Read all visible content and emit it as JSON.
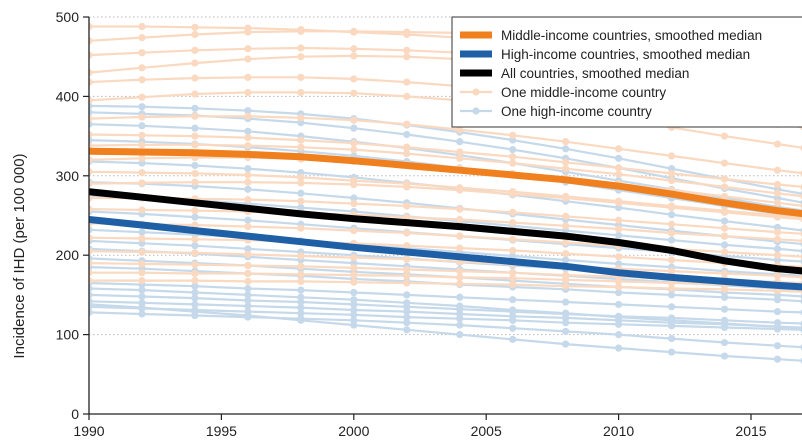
{
  "chart_data": {
    "type": "line",
    "xlabel": "",
    "ylabel": "Incidence of IHD (per 100 000)",
    "xlim": [
      1990,
      2017
    ],
    "ylim": [
      0,
      500
    ],
    "x_ticks": [
      1990,
      1995,
      2000,
      2005,
      2010,
      2015
    ],
    "y_ticks": [
      0,
      100,
      200,
      300,
      400,
      500
    ],
    "grid": "horizontal dotted",
    "legend_position": "top-right",
    "colors": {
      "middle_median": "#f07f1e",
      "high_median": "#1f5fa6",
      "all_median": "#000000",
      "middle_country": "#fad9c0",
      "high_country": "#c5d9ea"
    },
    "legend": [
      {
        "key": "middle_median",
        "label": "Middle-income countries, smoothed median"
      },
      {
        "key": "high_median",
        "label": "High-income countries, smoothed median"
      },
      {
        "key": "all_median",
        "label": "All countries, smoothed median"
      },
      {
        "key": "middle_country",
        "label": "One middle-income country"
      },
      {
        "key": "high_country",
        "label": "One high-income country"
      }
    ],
    "x": [
      1990,
      1992,
      1994,
      1996,
      1998,
      2000,
      2002,
      2004,
      2006,
      2008,
      2010,
      2012,
      2014,
      2016,
      2017
    ],
    "median_series": [
      {
        "key": "middle_median",
        "name": "Middle-income countries, smoothed median",
        "values": [
          331,
          330,
          329,
          327,
          324,
          319,
          313,
          307,
          301,
          295,
          287,
          277,
          266,
          256,
          252
        ]
      },
      {
        "key": "high_median",
        "name": "High-income countries, smoothed median",
        "values": [
          245,
          238,
          231,
          224,
          217,
          210,
          204,
          198,
          192,
          186,
          178,
          172,
          167,
          162,
          160
        ]
      },
      {
        "key": "all_median",
        "name": "All countries, smoothed median",
        "values": [
          280,
          273,
          266,
          259,
          252,
          246,
          241,
          236,
          230,
          224,
          216,
          206,
          193,
          183,
          180
        ]
      }
    ],
    "country_series": {
      "middle": [
        [
          488,
          488,
          487,
          486,
          484,
          481,
          478,
          474,
          470,
          466,
          460,
          453,
          446,
          438,
          434
        ],
        [
          470,
          474,
          478,
          481,
          482,
          482,
          481,
          480,
          478,
          474,
          469,
          462,
          455,
          447,
          443
        ],
        [
          452,
          455,
          458,
          460,
          461,
          460,
          458,
          455,
          451,
          446,
          440,
          433,
          425,
          418,
          414
        ],
        [
          430,
          436,
          442,
          447,
          450,
          451,
          450,
          447,
          442,
          436,
          428,
          418,
          407,
          397,
          392
        ],
        [
          418,
          421,
          423,
          424,
          424,
          422,
          418,
          413,
          407,
          400,
          392,
          383,
          374,
          365,
          361
        ],
        [
          395,
          399,
          403,
          405,
          405,
          404,
          400,
          395,
          388,
          380,
          371,
          361,
          350,
          340,
          335
        ],
        [
          372,
          374,
          375,
          375,
          373,
          370,
          365,
          358,
          351,
          343,
          334,
          325,
          316,
          307,
          303
        ],
        [
          352,
          351,
          350,
          348,
          345,
          341,
          336,
          330,
          324,
          317,
          310,
          303,
          296,
          289,
          286
        ],
        [
          338,
          339,
          339,
          338,
          336,
          333,
          328,
          322,
          316,
          309,
          302,
          294,
          286,
          278,
          274
        ],
        [
          320,
          322,
          323,
          323,
          321,
          318,
          314,
          309,
          303,
          297,
          290,
          282,
          274,
          266,
          262
        ],
        [
          305,
          304,
          303,
          301,
          298,
          294,
          290,
          285,
          280,
          274,
          268,
          262,
          256,
          250,
          247
        ],
        [
          290,
          291,
          292,
          292,
          291,
          289,
          286,
          282,
          277,
          272,
          266,
          260,
          254,
          248,
          245
        ],
        [
          272,
          272,
          271,
          270,
          268,
          265,
          262,
          258,
          254,
          249,
          244,
          239,
          234,
          229,
          227
        ],
        [
          258,
          257,
          256,
          255,
          253,
          251,
          248,
          245,
          241,
          237,
          233,
          228,
          224,
          220,
          218
        ],
        [
          240,
          239,
          238,
          236,
          234,
          231,
          228,
          224,
          220,
          216,
          212,
          208,
          204,
          200,
          198
        ],
        [
          222,
          221,
          220,
          219,
          217,
          215,
          212,
          209,
          206,
          202,
          198,
          194,
          190,
          187,
          185
        ],
        [
          205,
          204,
          203,
          201,
          199,
          197,
          195,
          192,
          189,
          186,
          183,
          180,
          177,
          174,
          172
        ],
        [
          190,
          189,
          188,
          187,
          186,
          184,
          182,
          180,
          178,
          175,
          173,
          170,
          168,
          166,
          165
        ],
        [
          178,
          178,
          177,
          177,
          176,
          175,
          174,
          172,
          171,
          169,
          167,
          165,
          163,
          161,
          160
        ],
        [
          168,
          168,
          168,
          167,
          167,
          166,
          165,
          164,
          163,
          161,
          160,
          158,
          157,
          155,
          154
        ]
      ],
      "high": [
        [
          388,
          387,
          385,
          382,
          378,
          372,
          364,
          355,
          345,
          334,
          322,
          309,
          296,
          283,
          277
        ],
        [
          380,
          378,
          376,
          372,
          367,
          360,
          352,
          343,
          333,
          322,
          310,
          297,
          284,
          272,
          266
        ],
        [
          365,
          363,
          360,
          356,
          350,
          343,
          335,
          326,
          316,
          305,
          294,
          283,
          272,
          261,
          256
        ],
        [
          345,
          343,
          340,
          336,
          331,
          325,
          318,
          310,
          301,
          292,
          282,
          272,
          262,
          252,
          248
        ],
        [
          318,
          316,
          313,
          309,
          304,
          298,
          291,
          284,
          276,
          268,
          260,
          251,
          243,
          235,
          231
        ],
        [
          292,
          290,
          287,
          283,
          278,
          272,
          266,
          259,
          252,
          245,
          238,
          231,
          224,
          217,
          214
        ],
        [
          275,
          272,
          269,
          265,
          260,
          255,
          249,
          243,
          237,
          231,
          225,
          219,
          213,
          208,
          205
        ],
        [
          255,
          252,
          248,
          244,
          239,
          234,
          229,
          224,
          219,
          214,
          209,
          204,
          199,
          194,
          192
        ],
        [
          232,
          229,
          226,
          222,
          218,
          213,
          209,
          204,
          199,
          194,
          189,
          185,
          180,
          176,
          174
        ],
        [
          218,
          215,
          212,
          208,
          204,
          200,
          196,
          191,
          187,
          183,
          178,
          174,
          170,
          166,
          164
        ],
        [
          208,
          205,
          202,
          198,
          194,
          190,
          186,
          182,
          178,
          174,
          170,
          166,
          162,
          158,
          156
        ],
        [
          196,
          193,
          190,
          187,
          183,
          179,
          176,
          172,
          168,
          164,
          160,
          157,
          153,
          150,
          148
        ],
        [
          185,
          183,
          180,
          177,
          174,
          170,
          167,
          163,
          160,
          157,
          153,
          150,
          147,
          144,
          142
        ],
        [
          165,
          163,
          161,
          158,
          156,
          153,
          150,
          147,
          144,
          141,
          138,
          135,
          132,
          129,
          128
        ],
        [
          158,
          156,
          153,
          150,
          147,
          144,
          140,
          136,
          131,
          127,
          122,
          118,
          114,
          110,
          108
        ],
        [
          150,
          148,
          146,
          143,
          141,
          138,
          135,
          132,
          129,
          126,
          123,
          121,
          118,
          115,
          114
        ],
        [
          142,
          140,
          138,
          136,
          134,
          131,
          129,
          126,
          123,
          121,
          118,
          115,
          113,
          110,
          109
        ],
        [
          135,
          133,
          131,
          129,
          127,
          125,
          122,
          120,
          118,
          115,
          113,
          111,
          109,
          107,
          106
        ],
        [
          128,
          126,
          124,
          122,
          120,
          118,
          115,
          112,
          108,
          104,
          100,
          95,
          90,
          86,
          84
        ],
        [
          138,
          134,
          129,
          124,
          118,
          112,
          106,
          100,
          94,
          88,
          83,
          78,
          73,
          69,
          67
        ]
      ]
    }
  }
}
